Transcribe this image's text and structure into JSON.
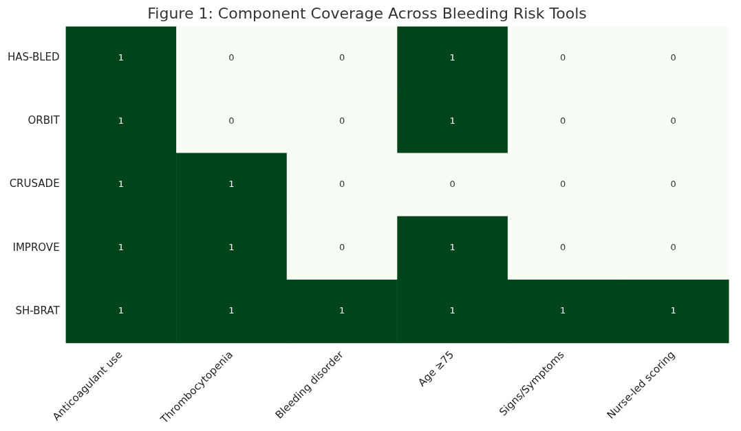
{
  "chart_data": {
    "type": "heatmap",
    "title": "Figure 1: Component Coverage Across Bleeding Risk Tools",
    "categories": [
      "Anticoagulant use",
      "Thrombocytopenia",
      "Bleeding disorder",
      "Age ≥75",
      "Signs/Symptoms",
      "Nurse-led scoring"
    ],
    "y_categories": [
      "HAS-BLED",
      "ORBIT",
      "CRUSADE",
      "IMPROVE",
      "SH-BRAT"
    ],
    "cells": [
      [
        1,
        0,
        0,
        1,
        0,
        0
      ],
      [
        1,
        0,
        0,
        1,
        0,
        0
      ],
      [
        1,
        1,
        0,
        0,
        0,
        0
      ],
      [
        1,
        1,
        0,
        1,
        0,
        0
      ],
      [
        1,
        1,
        1,
        1,
        1,
        1
      ]
    ],
    "colors": [
      "#f7fcf5",
      "#00441b"
    ],
    "data_labels": true
  }
}
